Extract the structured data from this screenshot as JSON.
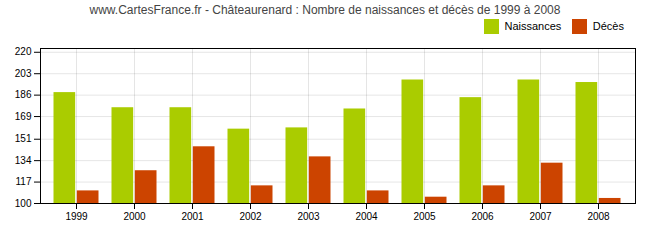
{
  "chart_data": {
    "type": "bar",
    "title": "www.CartesFrance.fr - Châteaurenard : Nombre de naissances et décès de 1999 à 2008",
    "categories": [
      "1999",
      "2000",
      "2001",
      "2002",
      "2003",
      "2004",
      "2005",
      "2006",
      "2007",
      "2008"
    ],
    "series": [
      {
        "name": "Naissances",
        "color": "#aacc00",
        "values": [
          188,
          176,
          176,
          159,
          160,
          175,
          198,
          184,
          198,
          196
        ]
      },
      {
        "name": "Décès",
        "color": "#cc4400",
        "values": [
          110,
          126,
          145,
          114,
          137,
          110,
          105,
          114,
          132,
          104
        ]
      }
    ],
    "ylim": [
      100,
      223
    ],
    "yticks": [
      100,
      117,
      134,
      151,
      169,
      186,
      203,
      220
    ],
    "grid": true,
    "legend": "upper right"
  }
}
